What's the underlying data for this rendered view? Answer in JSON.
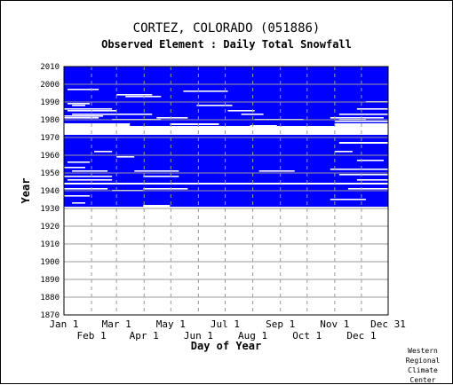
{
  "header": {
    "title": "CORTEZ, COLORADO   (051886)",
    "subtitle": "Observed Element : Daily Total Snowfall"
  },
  "credit": [
    "Western",
    "Regional",
    "Climate",
    "Center"
  ],
  "colors": {
    "data_fill": "#0000ff",
    "missing": "#ffffff",
    "grid": "#999999",
    "text": "#000000"
  },
  "chart_data": {
    "type": "heatmap",
    "xlabel": "Day of Year",
    "ylabel": "Year",
    "x_ticks_top_row": [
      "Jan 1",
      "Mar 1",
      "May 1",
      "Jul 1",
      "Sep 1",
      "Nov 1",
      "Dec 31"
    ],
    "x_ticks_top_row_days": [
      1,
      60,
      121,
      182,
      244,
      305,
      365
    ],
    "x_ticks_bottom_row": [
      "Feb 1",
      "Apr 1",
      "Jun 1",
      "Aug 1",
      "Oct 1",
      "Dec 1"
    ],
    "x_ticks_bottom_row_days": [
      32,
      91,
      152,
      213,
      274,
      335
    ],
    "y_ticks": [
      2010,
      2000,
      1990,
      1980,
      1970,
      1960,
      1950,
      1940,
      1930,
      1920,
      1910,
      1900,
      1890,
      1880,
      1870
    ],
    "xlim": [
      1,
      365
    ],
    "ylim": [
      1870,
      2010
    ],
    "grid": true,
    "data_period": [
      1931,
      2010
    ],
    "missing_full_year_bands": [
      [
        1971.5,
        1976.5
      ],
      [
        1943.5,
        1944.5
      ]
    ],
    "missing_partial_bands": [
      {
        "years": [
          1976.5,
          1978
        ],
        "days": [
          1,
          75
        ]
      },
      {
        "years": [
          1976.5,
          1978
        ],
        "days": [
          305,
          365
        ]
      },
      {
        "years": [
          1977,
          1978
        ],
        "days": [
          120,
          175
        ]
      },
      {
        "years": [
          1975,
          1977
        ],
        "days": [
          210,
          240
        ]
      },
      {
        "years": [
          1966.5,
          1967.5
        ],
        "days": [
          310,
          365
        ]
      },
      {
        "years": [
          1931,
          1932
        ],
        "days": [
          90,
          120
        ]
      }
    ],
    "missing_short_gaps": [
      {
        "year": 1997,
        "days": [
          5,
          40
        ]
      },
      {
        "year": 1994,
        "days": [
          60,
          100
        ]
      },
      {
        "year": 1993,
        "days": [
          70,
          110
        ]
      },
      {
        "year": 1996,
        "days": [
          135,
          185
        ]
      },
      {
        "year": 1989,
        "days": [
          5,
          30
        ]
      },
      {
        "year": 1988,
        "days": [
          10,
          25
        ]
      },
      {
        "year": 1986,
        "days": [
          1,
          55
        ]
      },
      {
        "year": 1985,
        "days": [
          5,
          60
        ]
      },
      {
        "year": 1983,
        "days": [
          10,
          60
        ]
      },
      {
        "year": 1982,
        "days": [
          1,
          45
        ]
      },
      {
        "year": 1981,
        "days": [
          1,
          40
        ]
      },
      {
        "year": 1980,
        "days": [
          55,
          110
        ]
      },
      {
        "year": 1983,
        "days": [
          60,
          100
        ]
      },
      {
        "year": 1981,
        "days": [
          105,
          140
        ]
      },
      {
        "year": 1985,
        "days": [
          185,
          215
        ]
      },
      {
        "year": 1983,
        "days": [
          200,
          225
        ]
      },
      {
        "year": 1980,
        "days": [
          215,
          270
        ]
      },
      {
        "year": 1988,
        "days": [
          150,
          190
        ]
      },
      {
        "year": 1986,
        "days": [
          330,
          365
        ]
      },
      {
        "year": 1983,
        "days": [
          310,
          365
        ]
      },
      {
        "year": 1981,
        "days": [
          300,
          360
        ]
      },
      {
        "year": 1980,
        "days": [
          310,
          340
        ]
      },
      {
        "year": 1979,
        "days": [
          305,
          365
        ]
      },
      {
        "year": 1990,
        "days": [
          340,
          365
        ]
      },
      {
        "year": 1962,
        "days": [
          35,
          55
        ]
      },
      {
        "year": 1959,
        "days": [
          60,
          80
        ]
      },
      {
        "year": 1956,
        "days": [
          5,
          30
        ]
      },
      {
        "year": 1953,
        "days": [
          1,
          25
        ]
      },
      {
        "year": 1951,
        "days": [
          10,
          50
        ]
      },
      {
        "year": 1948,
        "days": [
          1,
          55
        ]
      },
      {
        "year": 1946,
        "days": [
          5,
          55
        ]
      },
      {
        "year": 1941,
        "days": [
          1,
          50
        ]
      },
      {
        "year": 1940,
        "days": [
          55,
          90
        ]
      },
      {
        "year": 1937,
        "days": [
          1,
          30
        ]
      },
      {
        "year": 1933,
        "days": [
          10,
          25
        ]
      },
      {
        "year": 1951,
        "days": [
          80,
          130
        ]
      },
      {
        "year": 1948,
        "days": [
          90,
          130
        ]
      },
      {
        "year": 1941,
        "days": [
          90,
          140
        ]
      },
      {
        "year": 1951,
        "days": [
          220,
          260
        ]
      },
      {
        "year": 1952,
        "days": [
          300,
          365
        ]
      },
      {
        "year": 1949,
        "days": [
          310,
          365
        ]
      },
      {
        "year": 1946,
        "days": [
          330,
          365
        ]
      },
      {
        "year": 1941,
        "days": [
          320,
          365
        ]
      },
      {
        "year": 1935,
        "days": [
          300,
          340
        ]
      },
      {
        "year": 1957,
        "days": [
          330,
          360
        ]
      },
      {
        "year": 1962,
        "days": [
          305,
          325
        ]
      }
    ]
  }
}
